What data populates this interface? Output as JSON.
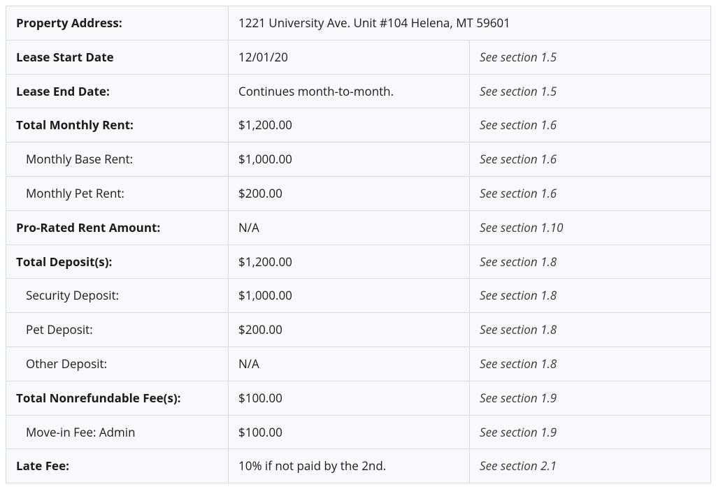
{
  "table": {
    "rows": [
      {
        "label": "Property Address:",
        "value": "1221 University Ave. Unit #104  Helena, MT 59601",
        "ref": null,
        "label_bold": true,
        "label_indent": false,
        "colspan_value": 2
      },
      {
        "label": "Lease Start Date",
        "value": "12/01/20",
        "ref": "See section 1.5",
        "label_bold": true,
        "label_indent": false
      },
      {
        "label": "Lease End Date:",
        "value": "Continues month-to-month.",
        "ref": "See section 1.5",
        "label_bold": true,
        "label_indent": false
      },
      {
        "label": "Total Monthly Rent:",
        "value": "$1,200.00",
        "ref": "See section 1.6",
        "label_bold": true,
        "label_indent": false
      },
      {
        "label": "Monthly Base Rent:",
        "value": "$1,000.00",
        "ref": "See section 1.6",
        "label_bold": false,
        "label_indent": true
      },
      {
        "label": "Monthly Pet Rent:",
        "value": "$200.00",
        "ref": "See section 1.6",
        "label_bold": false,
        "label_indent": true
      },
      {
        "label": "Pro-Rated Rent Amount:",
        "value": "N/A",
        "ref": "See section 1.10",
        "label_bold": true,
        "label_indent": false
      },
      {
        "label": "Total Deposit(s):",
        "value": "$1,200.00",
        "ref": "See section 1.8",
        "label_bold": true,
        "label_indent": false
      },
      {
        "label": "Security Deposit:",
        "value": "$1,000.00",
        "ref": "See section 1.8",
        "label_bold": false,
        "label_indent": true
      },
      {
        "label": "Pet Deposit:",
        "value": "$200.00",
        "ref": "See section 1.8",
        "label_bold": false,
        "label_indent": true
      },
      {
        "label": "Other Deposit:",
        "value": "N/A",
        "ref": "See section 1.8",
        "label_bold": false,
        "label_indent": true
      },
      {
        "label": "Total Nonrefundable Fee(s):",
        "value": "$100.00",
        "ref": "See section 1.9",
        "label_bold": true,
        "label_indent": false
      },
      {
        "label": "Move-in Fee: Admin",
        "value": "$100.00",
        "ref": "See section 1.9",
        "label_bold": false,
        "label_indent": true
      },
      {
        "label": "Late Fee:",
        "value": "10% if not paid by the 2nd.",
        "ref": "See section 2.1",
        "label_bold": true,
        "label_indent": false
      }
    ]
  },
  "colors": {
    "cell_bg": "#f7f9fc",
    "border": "#d6dbe1",
    "text": "#1a1a1a",
    "ref_text": "#3a3a3a"
  }
}
